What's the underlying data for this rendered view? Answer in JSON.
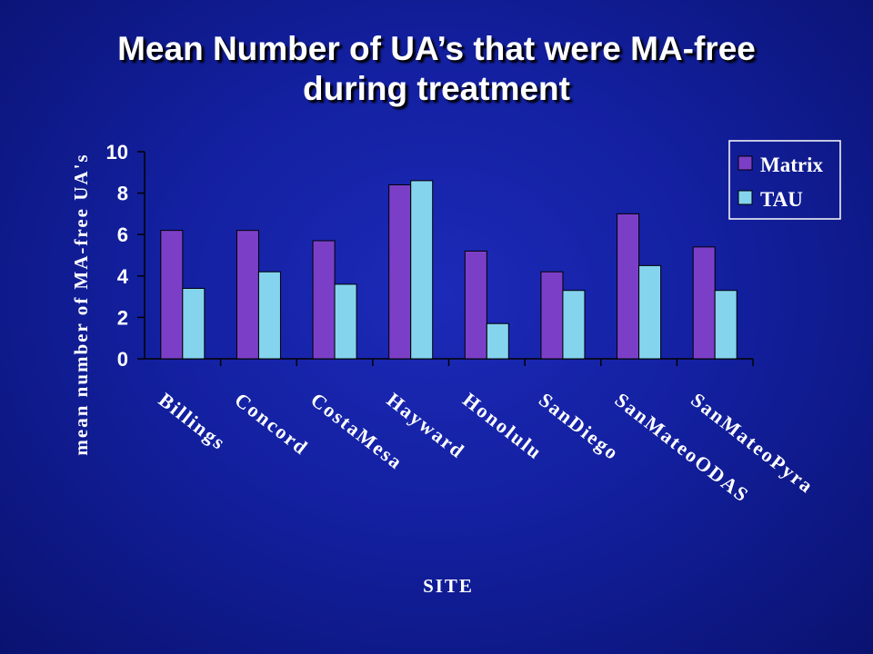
{
  "title": {
    "line1": "Mean Number of UA’s that were MA-free",
    "line2": "during treatment"
  },
  "colors": {
    "background": "#1320a0",
    "matrix": "#7b3fc7",
    "tau": "#85d4ee",
    "text": "#ffffff"
  },
  "chart_data": {
    "type": "bar",
    "categories": [
      "Billings",
      "Concord",
      "CostaMesa",
      "Hayward",
      "Honolulu",
      "SanDiego",
      "SanMateoODAS",
      "SanMateoPyra"
    ],
    "series": [
      {
        "name": "Matrix",
        "values": [
          6.2,
          6.2,
          5.7,
          8.4,
          5.2,
          4.2,
          7.0,
          5.4
        ]
      },
      {
        "name": "TAU",
        "values": [
          3.4,
          4.2,
          3.6,
          8.6,
          1.7,
          3.3,
          4.5,
          3.3
        ]
      }
    ],
    "xlabel": "SITE",
    "ylabel": "mean number of MA-free UA's",
    "ylim": [
      0,
      10
    ],
    "yticks": [
      0,
      2,
      4,
      6,
      8,
      10
    ],
    "grid": false,
    "legend": "top-right"
  }
}
